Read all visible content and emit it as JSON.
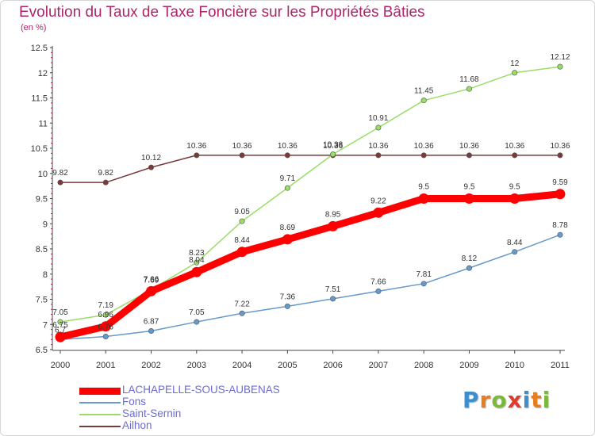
{
  "title": "Evolution du Taux de Taxe Foncière sur les Propriétés Bâties",
  "unit_label": "(en %)",
  "logo": {
    "letters": [
      "P",
      "r",
      "o",
      "x",
      "i",
      "t",
      "i"
    ],
    "colors": [
      "#3a8fd0",
      "#e87d1f",
      "#7cb83a",
      "#e03b2c",
      "#3a8fd0",
      "#e87d1f",
      "#7cb83a"
    ]
  },
  "chart_data": {
    "type": "line",
    "title": "Evolution du Taux de Taxe Foncière sur les Propriétés Bâties",
    "ylabel": "(en %)",
    "xlabel": "",
    "x": [
      "2000",
      "2001",
      "2002",
      "2003",
      "2004",
      "2005",
      "2006",
      "2007",
      "2008",
      "2009",
      "2010",
      "2011"
    ],
    "ylim": [
      6.5,
      12.5
    ],
    "yticks": [
      "6.5",
      "7",
      "7.5",
      "8",
      "8.5",
      "9",
      "9.5",
      "10",
      "10.5",
      "11",
      "11.5",
      "12",
      "12.5"
    ],
    "grid": false,
    "legend_position": "bottom-left",
    "series": [
      {
        "name": "LACHAPELLE-SOUS-AUBENAS",
        "color": "#ff0000",
        "values": [
          6.75,
          6.96,
          7.66,
          8.04,
          8.44,
          8.69,
          8.95,
          9.22,
          9.5,
          9.5,
          9.5,
          9.59
        ],
        "labels": [
          "6.75",
          "6.96",
          "7.66",
          "8.04",
          "8.44",
          "8.69",
          "8.95",
          "9.22",
          "9.5",
          "9.5",
          "9.5",
          "9.59"
        ]
      },
      {
        "name": "Fons",
        "color": "#6699cc",
        "values": [
          6.7,
          6.76,
          6.87,
          7.05,
          7.22,
          7.36,
          7.51,
          7.66,
          7.81,
          8.12,
          8.44,
          8.78
        ],
        "labels": [
          "6.7",
          "6.76",
          "6.87",
          "7.05",
          "7.22",
          "7.36",
          "7.51",
          "7.66",
          "7.81",
          "8.12",
          "8.44",
          "8.78"
        ]
      },
      {
        "name": "Saint-Sernin",
        "color": "#99dd66",
        "values": [
          7.05,
          7.19,
          7.69,
          8.23,
          9.05,
          9.71,
          10.38,
          10.91,
          11.45,
          11.68,
          12,
          12.12
        ],
        "labels": [
          "7.05",
          "7.19",
          "7.69",
          "8.23",
          "9.05",
          "9.71",
          "10.38",
          "10.91",
          "11.45",
          "11.68",
          "12",
          "12.12"
        ]
      },
      {
        "name": "Ailhon",
        "color": "#7a3a3a",
        "values": [
          9.82,
          9.82,
          10.12,
          10.36,
          10.36,
          10.36,
          10.36,
          10.36,
          10.36,
          10.36,
          10.36,
          10.36
        ],
        "labels": [
          "9.82",
          "9.82",
          "10.12",
          "10.36",
          "10.36",
          "10.36",
          "10.36",
          "10.36",
          "10.36",
          "10.36",
          "10.36",
          "10.36"
        ]
      }
    ]
  }
}
